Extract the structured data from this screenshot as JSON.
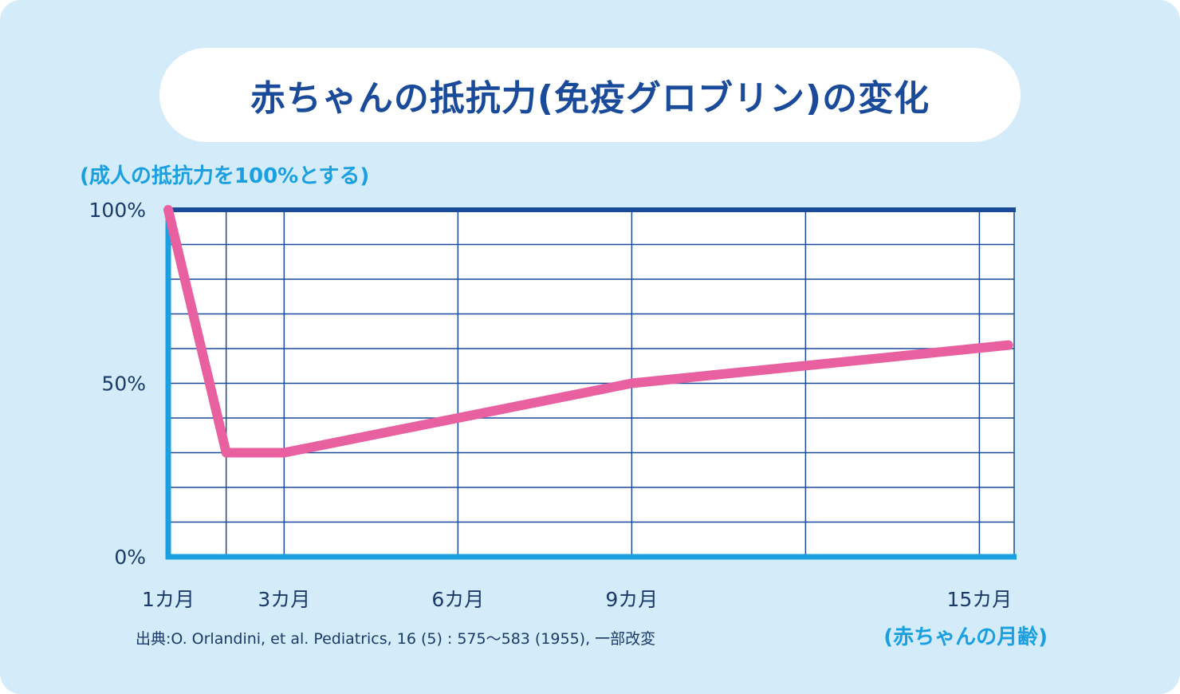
{
  "title": "赤ちゃんの抵抗力(免疫グロブリン)の変化",
  "source": "出典:O. Orlandini, et al. Pediatrics, 16 (5) : 575〜583 (1955), 一部改変",
  "colors": {
    "background": "#d4ebf9",
    "title_text": "#1a4a9a",
    "accent": "#1aa0e0",
    "grid": "#1a4a9a",
    "line": "#e8609f"
  },
  "chart_data": {
    "type": "line",
    "ylabel": "(成人の抵抗力を100%とする)",
    "xlabel": "(赤ちゃんの月齢)",
    "xlim": [
      1,
      15.6
    ],
    "ylim": [
      0,
      100
    ],
    "x_ticks": [
      {
        "value": 1,
        "label": "1カ月"
      },
      {
        "value": 3,
        "label": "3カ月"
      },
      {
        "value": 6,
        "label": "6カ月"
      },
      {
        "value": 9,
        "label": "9カ月"
      },
      {
        "value": 15,
        "label": "15カ月"
      }
    ],
    "y_ticks": [
      {
        "value": 0,
        "label": "0%"
      },
      {
        "value": 50,
        "label": "50%"
      },
      {
        "value": 100,
        "label": "100%"
      }
    ],
    "x_grid": [
      2,
      3,
      6,
      9,
      12,
      15
    ],
    "y_grid": [
      10,
      20,
      30,
      40,
      50,
      60,
      70,
      80,
      90
    ],
    "grid": true,
    "series": [
      {
        "x": [
          1,
          2,
          3,
          6,
          9,
          15.5
        ],
        "y": [
          100,
          30,
          30,
          40,
          50,
          61
        ]
      }
    ]
  }
}
